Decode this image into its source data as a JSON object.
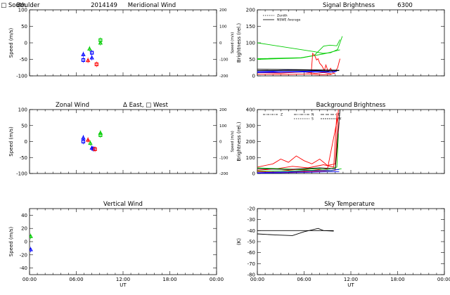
{
  "chart_data": [
    {
      "id": "meridional",
      "type": "scatter",
      "title": [
        "Boulder",
        "2014149",
        "Meridional Wind",
        "Δ North, □ South"
      ],
      "ylabel": "Speed (m/s)",
      "right_ylabel": "Speed (m/s)",
      "xlim": [
        0,
        24
      ],
      "ylim": [
        -100,
        100
      ],
      "yticks": [
        "-100",
        "-50",
        "0",
        "50",
        "100"
      ],
      "right_yticks": [
        "-200",
        "-100",
        "0",
        "100",
        "200"
      ],
      "series": [
        {
          "color": "#0000ff",
          "points": [
            [
              6.9,
              -35
            ],
            [
              6.9,
              -52
            ],
            [
              8.0,
              -45
            ],
            [
              8.0,
              -30
            ]
          ]
        },
        {
          "color": "#ff0000",
          "points": [
            [
              7.5,
              -53
            ],
            [
              8.6,
              -65
            ]
          ]
        },
        {
          "color": "#00cc00",
          "points": [
            [
              7.7,
              -18
            ],
            [
              9.1,
              8
            ],
            [
              9.1,
              0
            ]
          ]
        }
      ]
    },
    {
      "id": "signal",
      "type": "line",
      "title": [
        "Signal Brightness",
        "6300"
      ],
      "ylabel": "Brightness (rel.)",
      "xlim": [
        0,
        24
      ],
      "ylim": [
        0,
        200
      ],
      "yticks": [
        "0",
        "50",
        "100",
        "150",
        "200"
      ],
      "legend": [
        "Zenith",
        "NSWE Average"
      ],
      "series": [
        {
          "color": "#00cc00",
          "points": [
            [
              0,
              100
            ],
            [
              6.3,
              77
            ],
            [
              7.4,
              73
            ],
            [
              8.4,
              68
            ],
            [
              9.4,
              70
            ],
            [
              10.3,
              80
            ],
            [
              10.9,
              120
            ]
          ]
        },
        {
          "color": "#00cc00",
          "points": [
            [
              0,
              52
            ],
            [
              5.6,
              55
            ],
            [
              7.3,
              62
            ],
            [
              8.5,
              90
            ],
            [
              9.3,
              93
            ],
            [
              10.2,
              91
            ],
            [
              10.6,
              110
            ]
          ]
        },
        {
          "color": "#00cc00",
          "points": [
            [
              0,
              50
            ],
            [
              5.6,
              54
            ],
            [
              8.6,
              67
            ],
            [
              10.6,
              79
            ]
          ]
        },
        {
          "color": "#ff0000",
          "points": [
            [
              6.9,
              5
            ],
            [
              7.1,
              68
            ],
            [
              7.4,
              60
            ],
            [
              7.6,
              48
            ],
            [
              7.8,
              52
            ],
            [
              8.0,
              38
            ],
            [
              8.3,
              30
            ],
            [
              8.6,
              16
            ],
            [
              8.8,
              33
            ],
            [
              9.1,
              12
            ],
            [
              9.4,
              23
            ],
            [
              9.7,
              10
            ],
            [
              10.0,
              13
            ],
            [
              10.3,
              25
            ],
            [
              10.6,
              52
            ]
          ]
        },
        {
          "color": "#ff0000",
          "points": [
            [
              0,
              10
            ],
            [
              3.0,
              8
            ],
            [
              6.0,
              12
            ],
            [
              7.5,
              7
            ],
            [
              8.5,
              10
            ],
            [
              9.5,
              6
            ],
            [
              10.0,
              8
            ]
          ]
        },
        {
          "color": "#ff0000",
          "points": [
            [
              0,
              5
            ],
            [
              4.0,
              4
            ],
            [
              6.5,
              6
            ],
            [
              8.0,
              3
            ],
            [
              9.5,
              4
            ]
          ]
        },
        {
          "color": "#0000ff",
          "points": [
            [
              0,
              15
            ],
            [
              2.0,
              15
            ],
            [
              4.0,
              18
            ],
            [
              6.0,
              17
            ],
            [
              8.0,
              16
            ],
            [
              9.0,
              14
            ],
            [
              9.8,
              17
            ],
            [
              10.4,
              16
            ]
          ]
        },
        {
          "color": "#0000ff",
          "points": [
            [
              0,
              12
            ],
            [
              3.0,
              13
            ],
            [
              6.0,
              14
            ],
            [
              8.0,
              13
            ],
            [
              9.5,
              12
            ],
            [
              10.2,
              14
            ]
          ]
        },
        {
          "color": "#0000ff",
          "points": [
            [
              0,
              10
            ],
            [
              4.0,
              11
            ],
            [
              7.0,
              12
            ],
            [
              9.2,
              11
            ],
            [
              10.0,
              12
            ]
          ]
        },
        {
          "color": "#000000",
          "points": [
            [
              0,
              20
            ],
            [
              5.0,
              19
            ],
            [
              7.5,
              18
            ],
            [
              10.5,
              17
            ]
          ]
        },
        {
          "color": "#000000",
          "points": [
            [
              0,
              16
            ],
            [
              6.0,
              17
            ],
            [
              9.0,
              15
            ],
            [
              10.5,
              16
            ]
          ]
        }
      ]
    },
    {
      "id": "zonal",
      "type": "scatter",
      "title": [
        "Zonal Wind",
        "Δ East, □ West"
      ],
      "ylabel": "Speed (m/s)",
      "right_ylabel": "Speed (m/s)",
      "xlim": [
        0,
        24
      ],
      "ylim": [
        -100,
        100
      ],
      "yticks": [
        "-100",
        "-50",
        "0",
        "50",
        "100"
      ],
      "right_yticks": [
        "-200",
        "-100",
        "0",
        "100",
        "200"
      ],
      "series": [
        {
          "color": "#0000ff",
          "points": [
            [
              6.9,
              12
            ],
            [
              6.9,
              0
            ],
            [
              8.0,
              -20
            ],
            [
              8.2,
              -23
            ]
          ]
        },
        {
          "color": "#ff0000",
          "points": [
            [
              7.5,
              5
            ],
            [
              8.4,
              -24
            ]
          ]
        },
        {
          "color": "#00cc00",
          "points": [
            [
              7.8,
              -5
            ],
            [
              9.1,
              20
            ],
            [
              9.1,
              27
            ]
          ]
        }
      ]
    },
    {
      "id": "background",
      "type": "line",
      "title": [
        "Background Brightness"
      ],
      "ylabel": "Brightness (rel.)",
      "xlim": [
        0,
        24
      ],
      "ylim": [
        0,
        400
      ],
      "yticks": [
        "0",
        "100",
        "200",
        "300",
        "400"
      ],
      "legend": [
        "Z",
        "N",
        "S",
        "E",
        "W"
      ],
      "series": [
        {
          "color": "#ff0000",
          "points": [
            [
              0,
              40
            ],
            [
              2.0,
              60
            ],
            [
              3.0,
              90
            ],
            [
              4.0,
              70
            ],
            [
              5.0,
              110
            ],
            [
              6.0,
              80
            ],
            [
              7.0,
              60
            ],
            [
              8.0,
              90
            ],
            [
              9.0,
              50
            ],
            [
              10.0,
              60
            ],
            [
              10.4,
              400
            ]
          ]
        },
        {
          "color": "#ff0000",
          "points": [
            [
              0,
              20
            ],
            [
              2.5,
              30
            ],
            [
              4.5,
              45
            ],
            [
              6.5,
              35
            ],
            [
              8.5,
              55
            ],
            [
              9.8,
              40
            ],
            [
              10.2,
              380
            ]
          ]
        },
        {
          "color": "#ff0000",
          "points": [
            [
              0,
              10
            ],
            [
              3.0,
              15
            ],
            [
              5.0,
              25
            ],
            [
              7.0,
              20
            ],
            [
              9.0,
              30
            ],
            [
              10.3,
              350
            ]
          ]
        },
        {
          "color": "#ff0000",
          "points": [
            [
              0,
              5
            ],
            [
              4.0,
              8
            ],
            [
              6.5,
              12
            ],
            [
              8.5,
              15
            ],
            [
              10.0,
              20
            ],
            [
              10.5,
              320
            ]
          ]
        },
        {
          "color": "#00cc00",
          "points": [
            [
              0,
              35
            ],
            [
              3.0,
              30
            ],
            [
              5.5,
              25
            ],
            [
              7.5,
              30
            ],
            [
              9.0,
              25
            ],
            [
              10.2,
              40
            ],
            [
              10.4,
              250
            ]
          ]
        },
        {
          "color": "#00cc00",
          "points": [
            [
              0,
              15
            ],
            [
              4.0,
              15
            ],
            [
              7.0,
              20
            ],
            [
              9.5,
              18
            ],
            [
              10.8,
              30
            ]
          ]
        },
        {
          "color": "#000000",
          "points": [
            [
              0,
              30
            ],
            [
              4.0,
              25
            ],
            [
              8.0,
              35
            ],
            [
              10.0,
              30
            ],
            [
              10.6,
              400
            ]
          ]
        },
        {
          "color": "#0000ff",
          "points": [
            [
              0,
              5
            ],
            [
              2.0,
              8
            ],
            [
              4.0,
              10
            ],
            [
              6.0,
              15
            ],
            [
              8.0,
              18
            ],
            [
              9.5,
              20
            ],
            [
              10.5,
              25
            ]
          ]
        },
        {
          "color": "#0000ff",
          "points": [
            [
              0,
              2
            ],
            [
              3.0,
              4
            ],
            [
              6.0,
              6
            ],
            [
              8.5,
              10
            ],
            [
              10.5,
              12
            ]
          ]
        }
      ]
    },
    {
      "id": "vertical",
      "type": "scatter",
      "title": [
        "Vertical Wind"
      ],
      "ylabel": "Speed (m/s)",
      "xlabel": "UT",
      "xlim": [
        0,
        24
      ],
      "ylim": [
        -50,
        50
      ],
      "yticks": [
        "-40",
        "-20",
        "0",
        "20",
        "40"
      ],
      "xticks": [
        "00:00",
        "06:00",
        "12:00",
        "18:00",
        "00:00"
      ],
      "series": [
        {
          "color": "#00cc00",
          "points": [
            [
              0.15,
              8
            ]
          ]
        },
        {
          "color": "#0000ff",
          "points": [
            [
              0.15,
              -12
            ]
          ]
        }
      ]
    },
    {
      "id": "skytemp",
      "type": "line",
      "title": [
        "Sky Temperature"
      ],
      "ylabel": "(K)",
      "xlabel": "UT",
      "xlim": [
        0,
        24
      ],
      "ylim": [
        -80,
        -20
      ],
      "yticks": [
        "-80",
        "-70",
        "-60",
        "-50",
        "-40",
        "-30",
        "-20"
      ],
      "xticks": [
        "00:00",
        "06:00",
        "12:00",
        "18:00",
        "00:00"
      ],
      "series": [
        {
          "color": "#000000",
          "points": [
            [
              0,
              -43
            ],
            [
              2.5,
              -44
            ],
            [
              4.5,
              -44.5
            ],
            [
              6.0,
              -41
            ],
            [
              7.8,
              -38
            ],
            [
              8.5,
              -40
            ],
            [
              9.8,
              -40.5
            ]
          ]
        },
        {
          "color": "#000000",
          "points": [
            [
              0,
              -40
            ],
            [
              3.0,
              -40
            ],
            [
              6.0,
              -40
            ],
            [
              8.0,
              -40
            ],
            [
              9.8,
              -40
            ]
          ]
        }
      ]
    }
  ]
}
